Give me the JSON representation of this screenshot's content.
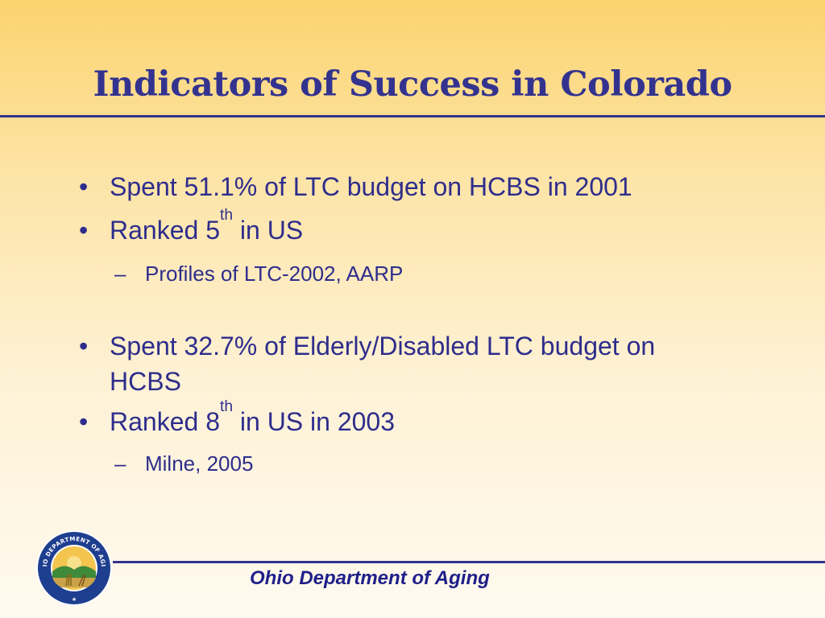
{
  "title": "Indicators of Success in Colorado",
  "bullets": [
    {
      "text": "Spent 51.1% of LTC budget on HCBS in 2001"
    },
    {
      "pre": "Ranked 5",
      "sup": "th",
      "post": " in US"
    },
    {
      "text": "Profiles of LTC-2002, AARP"
    },
    {
      "line1": "Spent 32.7% of Elderly/Disabled LTC budget on",
      "line2": "HCBS"
    },
    {
      "pre": "Ranked 8",
      "sup": "th",
      "post": " in US in 2003"
    },
    {
      "text": "Milne, 2005"
    }
  ],
  "bullet_glyph": "•",
  "dash_glyph": "–",
  "seal": {
    "icon": "ohio-department-of-aging-seal-icon",
    "text": "OHIO DEPARTMENT OF AGING"
  },
  "footer": {
    "org": "Ohio Department of Aging"
  },
  "colors": {
    "title": "#33338f",
    "text": "#2e2d8c",
    "background_top": "#fbd36f",
    "background_bottom": "#fffaf0"
  }
}
